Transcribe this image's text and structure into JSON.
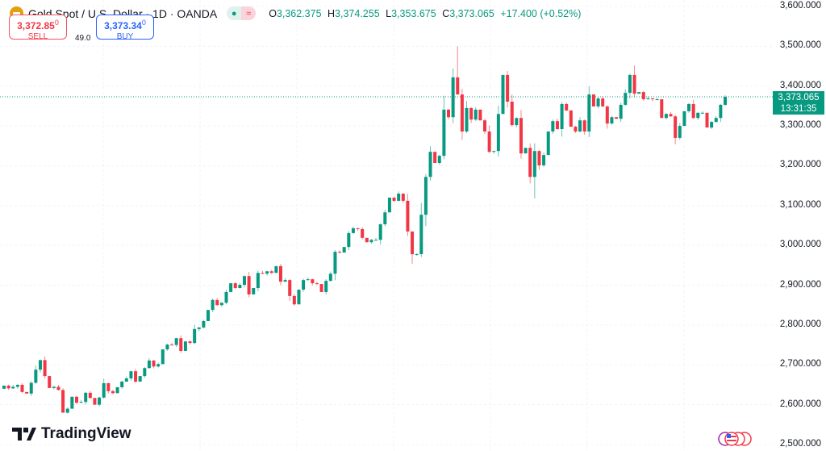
{
  "header": {
    "title": "Gold Spot / U.S. Dollar · 1D · OANDA",
    "ohlc": {
      "o_label": "O",
      "o": "3,362.375",
      "h_label": "H",
      "h": "3,374.255",
      "l_label": "L",
      "l": "3,353.675",
      "c_label": "C",
      "c": "3,373.065",
      "change": "+17.400 (+0.52%)"
    }
  },
  "trade": {
    "sell_price_main": "3,372.85",
    "sell_price_sup": "0",
    "sell_label": "SELL",
    "spread": "49.0",
    "buy_price_main": "3,373.34",
    "buy_price_sup": "0",
    "buy_label": "BUY"
  },
  "branding": {
    "logo_text": "TradingView"
  },
  "price_box": {
    "price": "3,373.065",
    "countdown": "13:31:35"
  },
  "colors": {
    "up": "#089981",
    "down": "#f23645",
    "grid": "#f0f3fa"
  },
  "chart_data": {
    "type": "candlestick",
    "symbol": "Gold Spot / U.S. Dollar",
    "interval": "1D",
    "ylim": [
      2500,
      3600
    ],
    "y_ticks": [
      "3,600.000",
      "3,500.000",
      "3,400.000",
      "3,300.000",
      "3,200.000",
      "3,100.000",
      "3,000.000",
      "2,900.000",
      "2,800.000",
      "2,700.000",
      "2,600.000",
      "2,500.000"
    ],
    "y_tick_values": [
      3600,
      3500,
      3400,
      3300,
      3200,
      3100,
      3000,
      2900,
      2800,
      2700,
      2600,
      2500
    ],
    "current_price": 3373.065,
    "first_open": 2640,
    "closes": [
      2648,
      2641,
      2645,
      2650,
      2632,
      2628,
      2655,
      2688,
      2712,
      2672,
      2642,
      2645,
      2637,
      2580,
      2590,
      2620,
      2605,
      2607,
      2630,
      2617,
      2600,
      2618,
      2654,
      2634,
      2629,
      2644,
      2658,
      2666,
      2684,
      2658,
      2672,
      2692,
      2711,
      2696,
      2702,
      2739,
      2751,
      2750,
      2767,
      2735,
      2759,
      2755,
      2790,
      2794,
      2810,
      2838,
      2863,
      2850,
      2856,
      2883,
      2905,
      2893,
      2901,
      2923,
      2877,
      2893,
      2931,
      2929,
      2935,
      2931,
      2948,
      2909,
      2913,
      2873,
      2852,
      2889,
      2913,
      2915,
      2905,
      2903,
      2883,
      2911,
      2929,
      2984,
      2982,
      2996,
      3031,
      3043,
      3041,
      3019,
      3008,
      3014,
      3014,
      3053,
      3083,
      3120,
      3112,
      3130,
      3112,
      3035,
      2978,
      2978,
      3077,
      3172,
      3235,
      3207,
      3225,
      3341,
      3322,
      3422,
      3379,
      3286,
      3345,
      3316,
      3341,
      3314,
      3286,
      3235,
      3237,
      3330,
      3428,
      3361,
      3302,
      3320,
      3231,
      3245,
      3172,
      3237,
      3201,
      3227,
      3286,
      3312,
      3292,
      3355,
      3339,
      3298,
      3286,
      3314,
      3286,
      3379,
      3349,
      3369,
      3349,
      3306,
      3322,
      3318,
      3353,
      3383,
      3428,
      3381,
      3385,
      3367,
      3369,
      3367,
      3367,
      3320,
      3330,
      3324,
      3270,
      3300,
      3337,
      3355,
      3320,
      3333,
      3333,
      3296,
      3310,
      3320,
      3353,
      3373
    ],
    "extreme_wicks": {
      "13": {
        "low": 2582
      },
      "90": {
        "low": 2954
      },
      "100": {
        "high": 3500
      },
      "117": {
        "low": 3118
      },
      "139": {
        "high": 3452
      }
    }
  }
}
